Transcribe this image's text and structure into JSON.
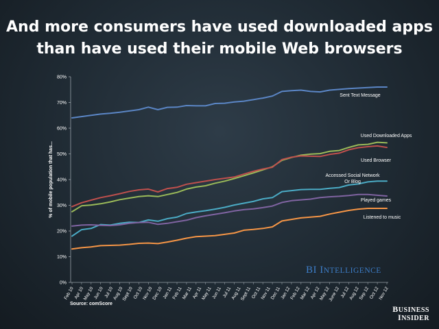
{
  "title_line1": "And more consumers have used downloaded apps",
  "title_line2": "than have used their mobile Web browsers",
  "source": "Source: comScore",
  "bi_intelligence_logo": "BI Intelligence",
  "business_insider_logo": "Business Insider",
  "chart_data": {
    "type": "line",
    "title": "And more consumers have used downloaded apps than have used their mobile Web browsers",
    "xlabel": "",
    "ylabel": "% of mobile population that has...",
    "ylim": [
      0,
      80
    ],
    "y_ticks": [
      "0%",
      "10%",
      "20%",
      "30%",
      "40%",
      "50%",
      "60%",
      "70%",
      "80%"
    ],
    "grid": false,
    "legend": "inline labels",
    "x_labels_all": [
      "Feb 10",
      "Mar 10",
      "Apr 10",
      "May 10",
      "Jun 10",
      "Jul 10",
      "Aug 10",
      "Sept 10",
      "Oct 10",
      "Nov 10",
      "Dec 10",
      "Jan 11",
      "Feb 11",
      "Mar 11",
      "Apr 11",
      "May 11",
      "Jun 11",
      "Jul 11",
      "Aug 11",
      "Sep 11",
      "Oct 11",
      "Nov 11",
      "Dec 11",
      "Jan 12",
      "Feb 12",
      "Mar 12",
      "Apr 12",
      "May 12",
      "Jun 12",
      "Jul 12",
      "Aug 12",
      "Sep 12",
      "Oct 12",
      "Nov 12"
    ],
    "x_labels_shown": [
      "Feb 10",
      "Apr 10",
      "May 10",
      "Jun 10",
      "Jul 10",
      "Aug 10",
      "Sept 10",
      "Oct 10",
      "Nov 10",
      "Dec 10",
      "Jan 11",
      "Feb 11",
      "Mar 11",
      "Apr 11",
      "May 11",
      "Jun 11",
      "Jul 11",
      "Aug 11",
      "Sept 11",
      "Oct 11",
      "Nov 11",
      "Dec 11",
      "Jan 12",
      "Feb 12",
      "Mar 12",
      "Apr 12",
      "May 12",
      "June 12",
      "Jul 12",
      "Aug 12",
      "Sep 12",
      "Oct 12",
      "Nov 12"
    ],
    "series": [
      {
        "name": "Sent Text Message",
        "label_lines": [
          "Sent Text Message"
        ],
        "color": "#5b86c6",
        "values": [
          64,
          64.5,
          65,
          65.5,
          65.8,
          66.2,
          66.7,
          67.2,
          68.2,
          67.2,
          68.1,
          68.2,
          68.8,
          68.7,
          68.7,
          69.6,
          69.7,
          70.2,
          70.5,
          71.1,
          71.7,
          72.5,
          74.3,
          74.6,
          74.8,
          74.3,
          74.1,
          74.8,
          75.1,
          75.4,
          75.6,
          75.8,
          76,
          76
        ]
      },
      {
        "name": "Used Downloaded Apps",
        "label_lines": [
          "Used Downloaded Apps"
        ],
        "color": "#9bbb59",
        "values": [
          27.5,
          29.8,
          30.1,
          30.6,
          31.3,
          32.2,
          32.8,
          33.4,
          33.7,
          33.4,
          34.2,
          35,
          36.3,
          37.1,
          37.6,
          38.6,
          39.4,
          40.4,
          41.5,
          42.6,
          43.8,
          45,
          47.5,
          48.6,
          49.5,
          49.9,
          50.1,
          51,
          51.3,
          52.5,
          53.5,
          53.7,
          54.5,
          54.3
        ]
      },
      {
        "name": "Used Browser",
        "label_lines": [
          "Used Browser"
        ],
        "color": "#c0504d",
        "values": [
          29.5,
          31,
          32,
          33,
          33.7,
          34.5,
          35.4,
          36,
          36.3,
          35.2,
          36.5,
          37,
          38.2,
          38.8,
          39.4,
          40,
          40.5,
          41,
          42.1,
          43.2,
          44.1,
          44.8,
          47.8,
          48.7,
          49.2,
          49.1,
          49,
          49.8,
          50.3,
          51.6,
          52.4,
          52.8,
          53.1,
          52.5
        ]
      },
      {
        "name": "Accessed Social Network Or Blog",
        "label_lines": [
          "Accessed Social Network",
          "Or Blog"
        ],
        "color": "#4bacc6",
        "values": [
          18,
          20.5,
          21,
          22.5,
          22.3,
          23,
          23.4,
          23.3,
          24.3,
          23.8,
          24.8,
          25.4,
          26.8,
          27.4,
          27.9,
          28.5,
          29.2,
          30.1,
          30.8,
          31.5,
          32.5,
          33,
          35.3,
          35.7,
          36.1,
          36.2,
          36.2,
          36.6,
          36.9,
          37.9,
          38.3,
          39.1,
          39.4,
          39.4
        ]
      },
      {
        "name": "Played games",
        "label_lines": [
          "Played games"
        ],
        "color": "#8064a2",
        "values": [
          21.9,
          22.3,
          22.4,
          22.2,
          22.1,
          22.4,
          23,
          23.3,
          23.4,
          22.6,
          23,
          23.6,
          24.2,
          25.2,
          25.9,
          26.5,
          27.1,
          27.8,
          28.3,
          28.6,
          29.1,
          29.7,
          31.1,
          31.8,
          32.1,
          32.4,
          33,
          33.3,
          33.5,
          33.8,
          34.2,
          34.2,
          33.9,
          33.6
        ]
      },
      {
        "name": "Listened to music",
        "label_lines": [
          "Listened to music"
        ],
        "color": "#f79646",
        "values": [
          13,
          13.5,
          13.8,
          14.3,
          14.4,
          14.5,
          14.8,
          15.2,
          15.3,
          15.1,
          15.7,
          16.4,
          17.2,
          17.8,
          18,
          18.2,
          18.7,
          19.2,
          20.3,
          20.6,
          21,
          21.6,
          23.9,
          24.5,
          25.1,
          25.4,
          25.7,
          26.6,
          27.3,
          28,
          28.5,
          28.8,
          28.8,
          28.8
        ]
      }
    ]
  }
}
